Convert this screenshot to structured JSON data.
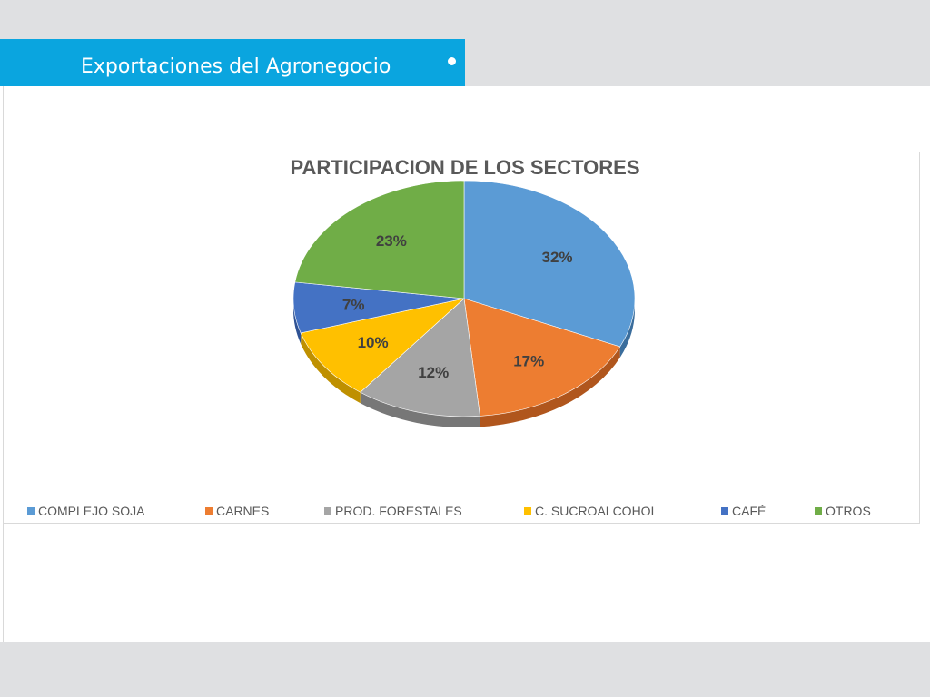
{
  "slide": {
    "title": "Exportaciones del Agronegocio"
  },
  "chart_data": {
    "type": "pie",
    "title": "PARTICIPACION DE LOS SECTORES",
    "categories": [
      "COMPLEJO SOJA",
      "CARNES",
      "PROD. FORESTALES",
      "C. SUCROALCOHOL",
      "CAFÉ",
      "OTROS"
    ],
    "values": [
      32,
      17,
      12,
      10,
      7,
      23
    ],
    "labels": [
      "32%",
      "17%",
      "12%",
      "10%",
      "7%",
      "23%"
    ],
    "colors": [
      "#5b9bd5",
      "#ed7d31",
      "#a5a5a5",
      "#ffc000",
      "#4472c4",
      "#70ad47"
    ],
    "side_colors": [
      "#3a6d9c",
      "#b0561d",
      "#777777",
      "#bf9000",
      "#2f5294",
      "#4e7f31"
    ],
    "legend_position": "bottom",
    "style": "3d"
  }
}
